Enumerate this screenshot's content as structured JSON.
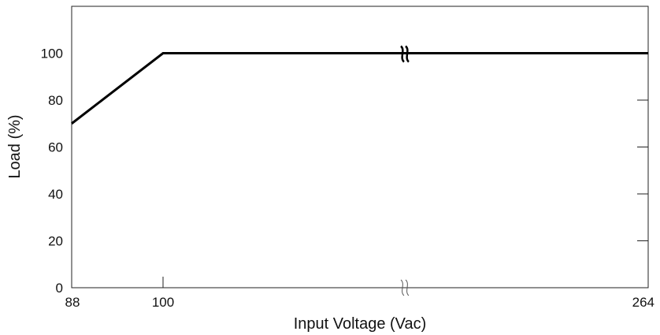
{
  "chart_data": {
    "type": "line",
    "title": "",
    "xlabel": "Input Voltage (Vac)",
    "ylabel": "Load (%)",
    "x_ticks": [
      "88",
      "100",
      "264"
    ],
    "y_ticks": [
      "0",
      "20",
      "40",
      "60",
      "80",
      "100"
    ],
    "xlim": [
      88,
      264
    ],
    "ylim": [
      0,
      120
    ],
    "axis_break": "on x-axis between 100 and 264 (≈ symbols)",
    "series": [
      {
        "x": [
          88,
          100,
          264
        ],
        "y": [
          70,
          100,
          100
        ]
      }
    ],
    "grid": false,
    "legend": "none"
  }
}
